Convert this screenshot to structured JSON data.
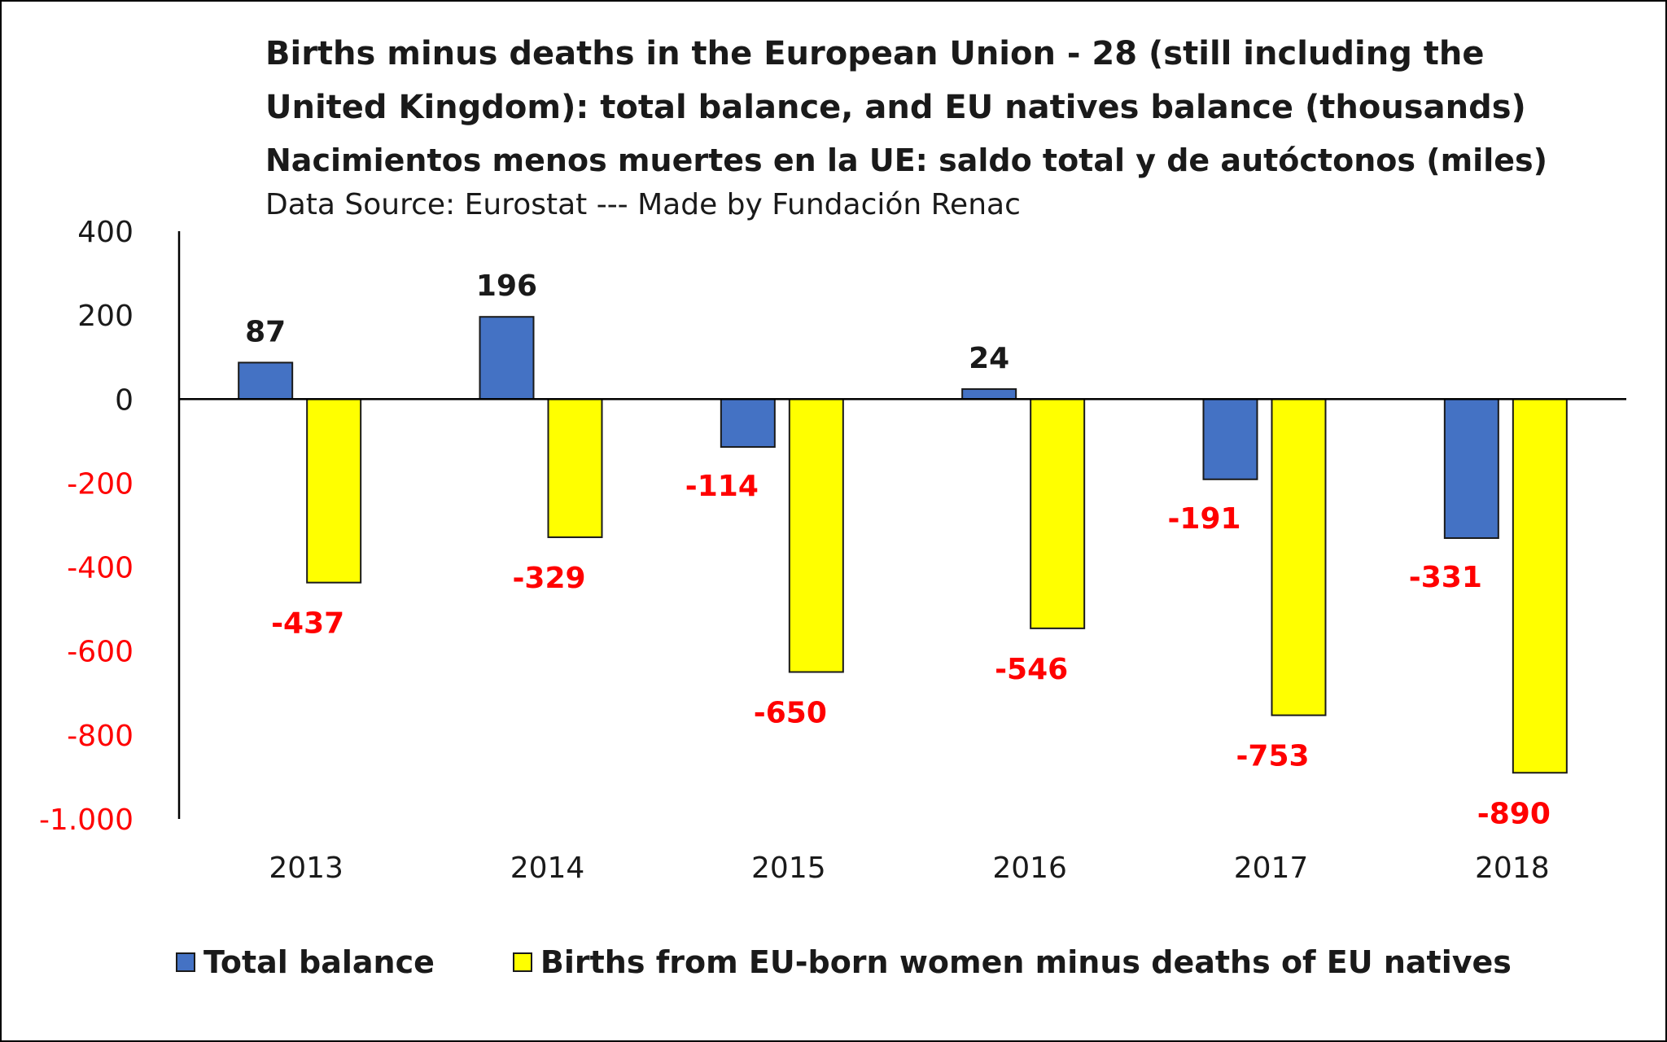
{
  "title_line1": "Births minus deaths in the European Union - 28 (still including the",
  "title_line2": "United Kingdom): total balance, and EU natives balance (thousands)",
  "subtitle": "Nacimientos menos muertes en la UE: saldo total y de autóctonos (miles)",
  "source": "Data Source: Eurostat  --- Made by Fundación Renac",
  "colors": {
    "total": "#4472C4",
    "natives": "#FFFF00",
    "negative_label": "#FF0000",
    "positive_label": "#1a1a1a"
  },
  "chart_data": {
    "type": "bar",
    "title": "Births minus deaths in the European Union - 28 (still including the United Kingdom): total balance, and EU natives balance (thousands)",
    "subtitle": "Nacimientos menos muertes en la UE: saldo total y de autóctonos (miles)",
    "xlabel": "",
    "ylabel": "",
    "categories": [
      "2013",
      "2014",
      "2015",
      "2016",
      "2017",
      "2018"
    ],
    "series": [
      {
        "name": "Total balance",
        "values": [
          87,
          196,
          -114,
          24,
          -191,
          -331
        ],
        "color": "#4472C4"
      },
      {
        "name": "Births from EU-born women minus deaths of EU natives",
        "values": [
          -437,
          -329,
          -650,
          -546,
          -753,
          -890
        ],
        "color": "#FFFF00"
      }
    ],
    "data_labels": [
      [
        "87",
        "196",
        "-114",
        "24",
        "-191",
        "-331"
      ],
      [
        "-437",
        "-329",
        "-650",
        "-546",
        "-753",
        "-890"
      ]
    ],
    "ylim": [
      -1000,
      400
    ],
    "yticks": [
      400,
      200,
      0,
      -200,
      -400,
      -600,
      -800,
      -1000
    ],
    "ytick_labels": [
      "400",
      "200",
      "0",
      "-200",
      "-400",
      "-600",
      "-800",
      "-1.000"
    ],
    "grid": false,
    "legend_position": "bottom"
  }
}
